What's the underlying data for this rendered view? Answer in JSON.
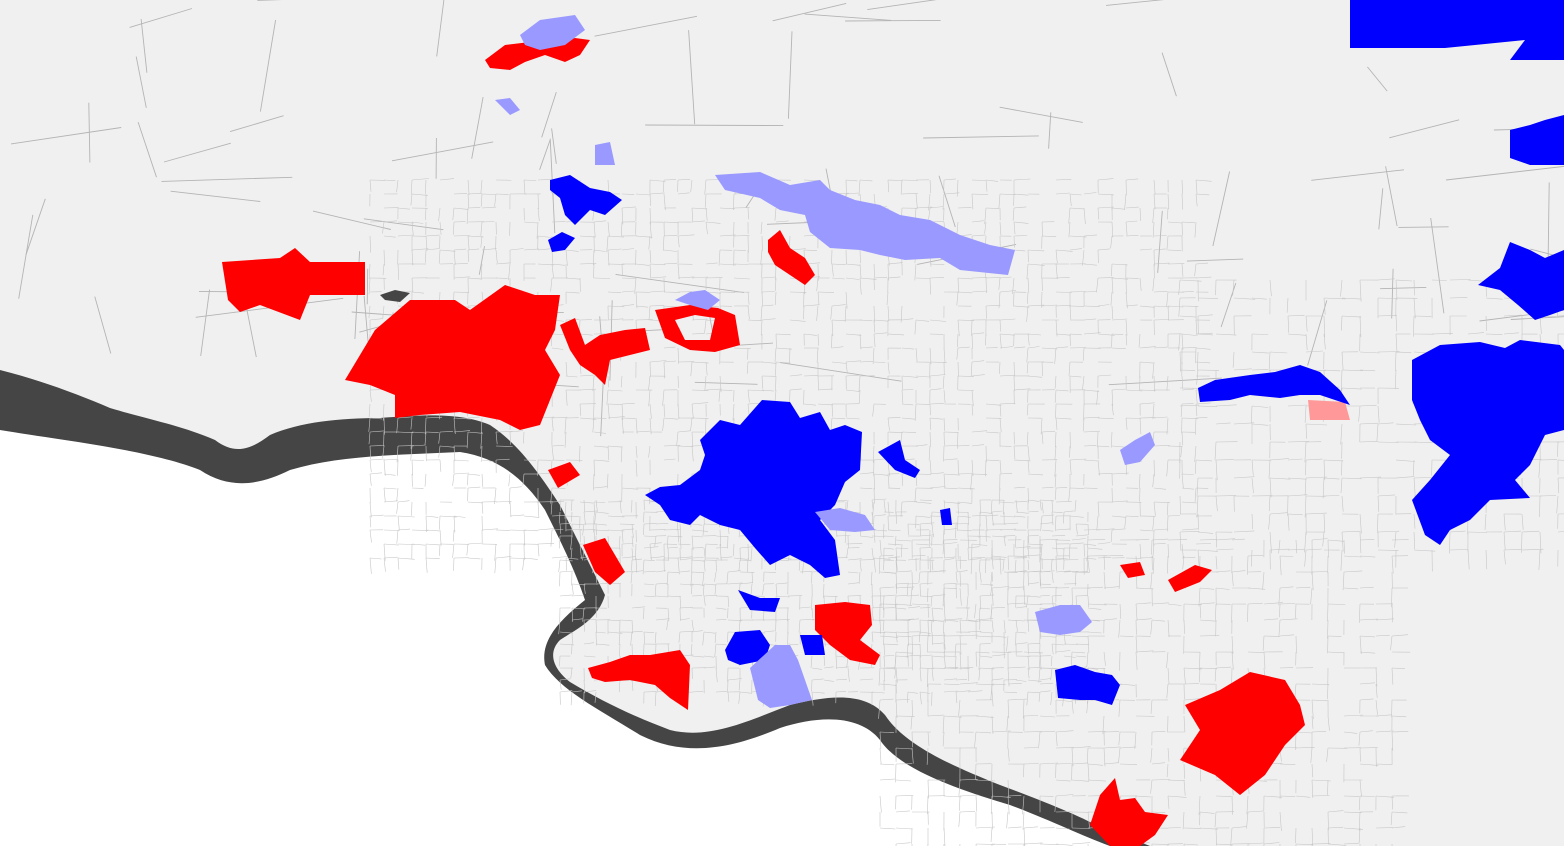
{
  "map": {
    "type": "choropleth",
    "region": "census tracts",
    "colors": {
      "land": "#f0f0f0",
      "ocean": "#ffffff",
      "coast_band": "#454545",
      "tract_border": "#c6c6c6",
      "hot_spot_high": "#ff0000",
      "hot_spot_low": "#ff9999",
      "cold_spot_high": "#0000ff",
      "cold_spot_low": "#9999ff",
      "no_data": "#454545"
    },
    "categories": [
      {
        "key": "high_high",
        "color": "#ff0000"
      },
      {
        "key": "high_low",
        "color": "#ff9999"
      },
      {
        "key": "low_low",
        "color": "#0000ff"
      },
      {
        "key": "low_high",
        "color": "#9999ff"
      },
      {
        "key": "not_significant",
        "color": "#f0f0f0"
      }
    ],
    "legend_visible": false,
    "labels_visible": false
  }
}
